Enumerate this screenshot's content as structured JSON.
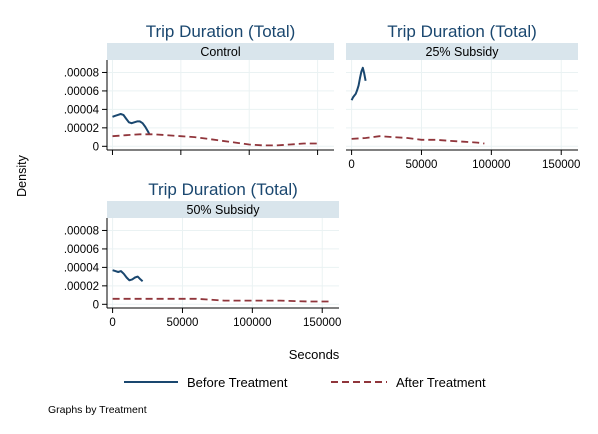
{
  "chart_data": {
    "type": "line",
    "xlabel": "Seconds",
    "ylabel": "Density",
    "note": "Graphs by Treatment",
    "x_ticks": [
      0,
      50000,
      100000,
      150000
    ],
    "x_tick_labels": [
      "0",
      "50000",
      "100000",
      "150000"
    ],
    "y_ticks": [
      0,
      2e-05,
      4e-05,
      6e-05,
      8e-05
    ],
    "y_tick_labels": [
      "0",
      ".00002",
      ".00004",
      ".00006",
      ".00008"
    ],
    "xlim": [
      -4000,
      162000
    ],
    "ylim": [
      -4e-06,
      9.35e-05
    ],
    "grid": true,
    "legend_placement": "bottom",
    "colors": {
      "before": "#1a476f",
      "after": "#90353b",
      "strip": "#d9e5ec",
      "title": "#1a476f",
      "grid": "#eaf2f3"
    },
    "legend": [
      {
        "label": "Before Treatment",
        "style": "solid",
        "color": "#1a476f"
      },
      {
        "label": "After Treatment",
        "style": "dashed",
        "color": "#90353b"
      }
    ],
    "panels": [
      {
        "title": "Trip Duration (Total)",
        "strip": "Control",
        "series": [
          {
            "name": "Before Treatment",
            "x": [
              0,
              2000,
              4000,
              6000,
              8000,
              10000,
              12000,
              14000,
              16000,
              18000,
              20000,
              22000,
              24000,
              26000,
              27000
            ],
            "y": [
              3.2e-05,
              3.3e-05,
              3.4e-05,
              3.5e-05,
              3.4e-05,
              3e-05,
              2.6e-05,
              2.5e-05,
              2.6e-05,
              2.7e-05,
              2.7e-05,
              2.5e-05,
              2.1e-05,
              1.6e-05,
              1.3e-05
            ]
          },
          {
            "name": "After Treatment",
            "x": [
              0,
              10000,
              20000,
              30000,
              40000,
              50000,
              60000,
              70000,
              80000,
              90000,
              100000,
              110000,
              120000,
              130000,
              140000,
              150000
            ],
            "y": [
              1.1e-05,
              1.2e-05,
              1.3e-05,
              1.3e-05,
              1.2e-05,
              1.1e-05,
              1e-05,
              8e-06,
              6e-06,
              4e-06,
              2e-06,
              1e-06,
              1e-06,
              2e-06,
              3e-06,
              3e-06
            ]
          }
        ]
      },
      {
        "title": "Trip Duration (Total)",
        "strip": "25% Subsidy",
        "series": [
          {
            "name": "Before Treatment",
            "x": [
              0,
              1000,
              2000,
              3000,
              4000,
              5000,
              6000,
              7000,
              8000,
              9000,
              10000
            ],
            "y": [
              5e-05,
              5.3e-05,
              5.5e-05,
              5.7e-05,
              6.1e-05,
              6.6e-05,
              7.4e-05,
              8.1e-05,
              8.5e-05,
              7.9e-05,
              7.1e-05
            ]
          },
          {
            "name": "After Treatment",
            "x": [
              0,
              10000,
              20000,
              30000,
              40000,
              50000,
              60000,
              70000,
              80000,
              90000,
              95000
            ],
            "y": [
              8e-06,
              9e-06,
              1.1e-05,
              1e-05,
              9e-06,
              7e-06,
              7e-06,
              6e-06,
              5e-06,
              4e-06,
              3e-06
            ]
          }
        ]
      },
      {
        "title": "Trip Duration (Total)",
        "strip": "50% Subsidy",
        "series": [
          {
            "name": "Before Treatment",
            "x": [
              0,
              2000,
              4000,
              6000,
              8000,
              10000,
              12000,
              14000,
              16000,
              18000,
              20000,
              21500
            ],
            "y": [
              3.7e-05,
              3.6e-05,
              3.5e-05,
              3.6e-05,
              3.3e-05,
              2.9e-05,
              2.6e-05,
              2.7e-05,
              2.9e-05,
              3e-05,
              2.7e-05,
              2.5e-05
            ]
          },
          {
            "name": "After Treatment",
            "x": [
              0,
              20000,
              40000,
              60000,
              70000,
              80000,
              100000,
              120000,
              140000,
              155000
            ],
            "y": [
              6e-06,
              6e-06,
              6e-06,
              6e-06,
              5e-06,
              4e-06,
              4e-06,
              4e-06,
              3e-06,
              3e-06
            ]
          }
        ]
      }
    ]
  }
}
